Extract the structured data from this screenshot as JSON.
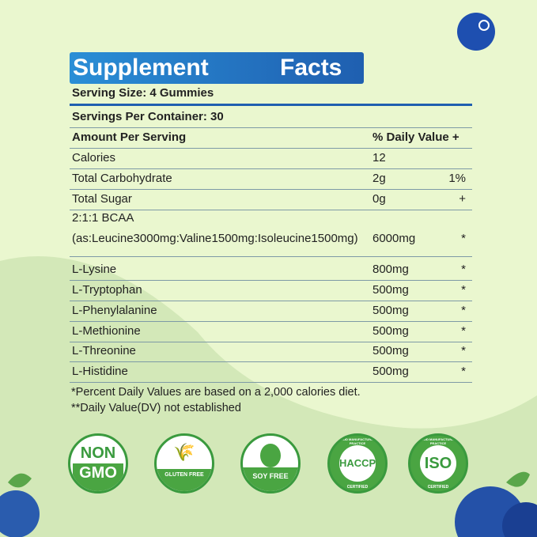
{
  "title": {
    "left": "Supplement",
    "right": "Facts"
  },
  "serving_size": "Serving Size: 4 Gummies",
  "servings_per_container": "Servings Per Container: 30",
  "header": {
    "amount": "Amount Per Serving",
    "dv": "% Daily Value +"
  },
  "rows": [
    {
      "name": "Calories",
      "amount": "12",
      "dv": ""
    },
    {
      "name": "Total Carbohydrate",
      "amount": "2g",
      "dv": "1%"
    },
    {
      "name": "Total Sugar",
      "amount": "0g",
      "dv": "+"
    },
    {
      "name": "L-Lysine",
      "amount": "800mg",
      "dv": "*"
    },
    {
      "name": "L-Tryptophan",
      "amount": "500mg",
      "dv": "*"
    },
    {
      "name": "L-Phenylalanine",
      "amount": "500mg",
      "dv": "*"
    },
    {
      "name": "L-Methionine",
      "amount": "500mg",
      "dv": "*"
    },
    {
      "name": "L-Threonine",
      "amount": "500mg",
      "dv": "*"
    },
    {
      "name": "L-Histidine",
      "amount": "500mg",
      "dv": "*"
    }
  ],
  "bcaa": {
    "name": "2:1:1 BCAA",
    "detail": "(as:Leucine3000mg:Valine1500mg:Isoleucine1500mg)",
    "amount": "6000mg",
    "dv": "*"
  },
  "footnotes": [
    "*Percent Daily Values are based on a 2,000 calories diet.",
    "**Daily Value(DV) not established"
  ],
  "badges": {
    "non": "NON",
    "gmo": "GMO",
    "gluten": "GLUTEN FREE",
    "soy": "SOY FREE",
    "haccp": "HACCP",
    "iso": "ISO",
    "gmp": "GOOD MANUFACTURING PRACTICE",
    "certified": "CERTIFIED"
  },
  "colors": {
    "title_blue": "#1f6fc0",
    "badge_green": "#4aa542",
    "background": "#eaf7cf"
  }
}
